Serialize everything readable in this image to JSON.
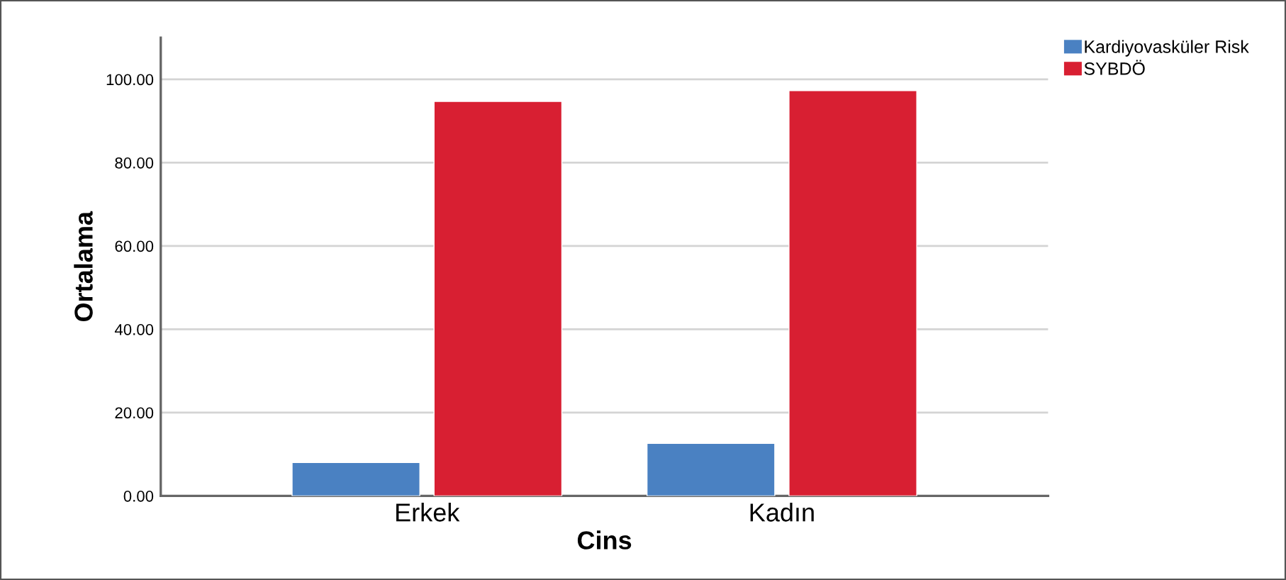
{
  "chart_data": {
    "type": "bar",
    "xlabel": "Cins",
    "ylabel": "Ortalama",
    "categories": [
      "Erkek",
      "Kadın"
    ],
    "series": [
      {
        "name": "Kardiyovasküler Risk",
        "color": "#4a81c2",
        "values": [
          8.0,
          12.6
        ]
      },
      {
        "name": "SYBDÖ",
        "color": "#d81f32",
        "values": [
          94.7,
          97.3
        ]
      }
    ],
    "ylim": [
      0,
      110
    ],
    "yticks": [
      {
        "value": 0,
        "label": "0.00"
      },
      {
        "value": 20,
        "label": "20.00"
      },
      {
        "value": 40,
        "label": "40.00"
      },
      {
        "value": 60,
        "label": "60.00"
      },
      {
        "value": 80,
        "label": "80.00"
      },
      {
        "value": 100,
        "label": "100.00"
      }
    ],
    "grid": "y",
    "legend": "top right"
  }
}
